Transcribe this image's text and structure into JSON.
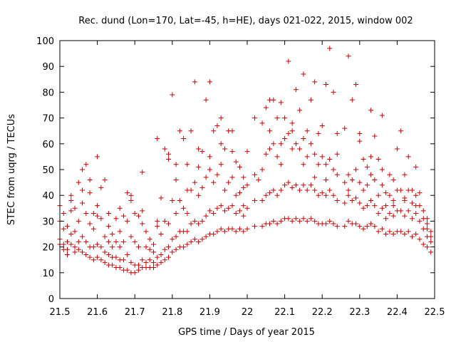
{
  "chart_data": {
    "type": "scatter",
    "title": "Rec. dund (Lon=170, Lat=-45, h=HE), days 021-022, 2015, window 002",
    "xlabel": "GPS time / Days of year 2015",
    "ylabel": "STEC from uqrg / TECUs",
    "xlim": [
      21.5,
      22.5
    ],
    "ylim": [
      0,
      100
    ],
    "xticks": [
      "21.5",
      "21.6",
      "21.7",
      "21.8",
      "21.9",
      "22",
      "22.1",
      "22.2",
      "22.3",
      "22.4",
      "22.5"
    ],
    "yticks": [
      "0",
      "10",
      "20",
      "30",
      "40",
      "50",
      "60",
      "70",
      "80",
      "90",
      "100"
    ],
    "grid": false,
    "marker": "plus",
    "color": "#cc0000",
    "points": [
      [
        21.5,
        36
      ],
      [
        21.51,
        33
      ],
      [
        21.52,
        28
      ],
      [
        21.53,
        40
      ],
      [
        21.54,
        35
      ],
      [
        21.55,
        45
      ],
      [
        21.56,
        50
      ],
      [
        21.57,
        52
      ],
      [
        21.58,
        41
      ],
      [
        21.59,
        33
      ],
      [
        21.6,
        55
      ],
      [
        21.61,
        43
      ],
      [
        21.62,
        46
      ],
      [
        21.63,
        33
      ],
      [
        21.64,
        25
      ],
      [
        21.65,
        31
      ],
      [
        21.66,
        26
      ],
      [
        21.67,
        32
      ],
      [
        21.68,
        41
      ],
      [
        21.69,
        38
      ],
      [
        21.7,
        33
      ],
      [
        21.71,
        32
      ],
      [
        21.72,
        49
      ],
      [
        21.73,
        26
      ],
      [
        21.74,
        23
      ],
      [
        21.75,
        21
      ],
      [
        21.76,
        62
      ],
      [
        21.77,
        39
      ],
      [
        21.78,
        58
      ],
      [
        21.79,
        56
      ],
      [
        21.8,
        79
      ],
      [
        21.81,
        52
      ],
      [
        21.82,
        65
      ],
      [
        21.83,
        62
      ],
      [
        21.84,
        42
      ],
      [
        21.85,
        65
      ],
      [
        21.86,
        84
      ],
      [
        21.87,
        51
      ],
      [
        21.88,
        57
      ],
      [
        21.89,
        77
      ],
      [
        21.9,
        84
      ],
      [
        21.91,
        65
      ],
      [
        21.92,
        67
      ],
      [
        21.93,
        70
      ],
      [
        21.94,
        58
      ],
      [
        21.95,
        65
      ],
      [
        21.96,
        65
      ],
      [
        21.97,
        53
      ],
      [
        21.98,
        51
      ],
      [
        21.99,
        47
      ],
      [
        22.0,
        57
      ],
      [
        22.02,
        70
      ],
      [
        22.04,
        68
      ],
      [
        22.05,
        74
      ],
      [
        22.06,
        77
      ],
      [
        22.07,
        77
      ],
      [
        22.08,
        70
      ],
      [
        22.09,
        76
      ],
      [
        22.1,
        70
      ],
      [
        22.11,
        92
      ],
      [
        22.12,
        65
      ],
      [
        22.13,
        81
      ],
      [
        22.14,
        73
      ],
      [
        22.15,
        87
      ],
      [
        22.16,
        65
      ],
      [
        22.17,
        77
      ],
      [
        22.18,
        84
      ],
      [
        22.19,
        64
      ],
      [
        22.2,
        67
      ],
      [
        22.21,
        83
      ],
      [
        22.22,
        97
      ],
      [
        22.23,
        80
      ],
      [
        22.24,
        64
      ],
      [
        22.26,
        66
      ],
      [
        22.27,
        94
      ],
      [
        22.28,
        77
      ],
      [
        22.29,
        83
      ],
      [
        22.3,
        61
      ],
      [
        22.31,
        54
      ],
      [
        22.32,
        51
      ],
      [
        22.33,
        73
      ],
      [
        22.34,
        63
      ],
      [
        22.35,
        54
      ],
      [
        22.36,
        71
      ],
      [
        22.37,
        41
      ],
      [
        22.38,
        48
      ],
      [
        22.39,
        46
      ],
      [
        22.4,
        58
      ],
      [
        22.41,
        65
      ],
      [
        22.42,
        48
      ],
      [
        22.43,
        55
      ],
      [
        22.44,
        42
      ],
      [
        22.45,
        51
      ],
      [
        22.46,
        41
      ],
      [
        22.47,
        34
      ],
      [
        22.48,
        29
      ],
      [
        22.49,
        26
      ],
      [
        21.5,
        30
      ],
      [
        21.51,
        27
      ],
      [
        21.52,
        22
      ],
      [
        21.53,
        34
      ],
      [
        21.54,
        26
      ],
      [
        21.55,
        30
      ],
      [
        21.56,
        37
      ],
      [
        21.57,
        33
      ],
      [
        21.58,
        29
      ],
      [
        21.59,
        27
      ],
      [
        21.6,
        32
      ],
      [
        21.61,
        31
      ],
      [
        21.62,
        24
      ],
      [
        21.63,
        22
      ],
      [
        21.64,
        20
      ],
      [
        21.65,
        22
      ],
      [
        21.66,
        20
      ],
      [
        21.67,
        22
      ],
      [
        21.68,
        30
      ],
      [
        21.69,
        24
      ],
      [
        21.7,
        22
      ],
      [
        21.71,
        20
      ],
      [
        21.72,
        29
      ],
      [
        21.73,
        20
      ],
      [
        21.74,
        19
      ],
      [
        21.75,
        18
      ],
      [
        21.76,
        28
      ],
      [
        21.77,
        25
      ],
      [
        21.78,
        30
      ],
      [
        21.79,
        29
      ],
      [
        21.8,
        38
      ],
      [
        21.81,
        33
      ],
      [
        21.82,
        38
      ],
      [
        21.83,
        35
      ],
      [
        21.84,
        33
      ],
      [
        21.85,
        42
      ],
      [
        21.86,
        45
      ],
      [
        21.87,
        40
      ],
      [
        21.88,
        43
      ],
      [
        21.89,
        47
      ],
      [
        21.9,
        50
      ],
      [
        21.91,
        45
      ],
      [
        21.92,
        48
      ],
      [
        21.93,
        52
      ],
      [
        21.94,
        42
      ],
      [
        21.95,
        45
      ],
      [
        21.96,
        47
      ],
      [
        21.97,
        40
      ],
      [
        21.98,
        41
      ],
      [
        21.99,
        36
      ],
      [
        22.0,
        44
      ],
      [
        22.02,
        48
      ],
      [
        22.04,
        50
      ],
      [
        22.05,
        56
      ],
      [
        22.06,
        58
      ],
      [
        22.07,
        60
      ],
      [
        22.08,
        55
      ],
      [
        22.09,
        60
      ],
      [
        22.1,
        62
      ],
      [
        22.11,
        64
      ],
      [
        22.12,
        58
      ],
      [
        22.13,
        60
      ],
      [
        22.14,
        58
      ],
      [
        22.15,
        62
      ],
      [
        22.16,
        55
      ],
      [
        22.17,
        60
      ],
      [
        22.18,
        56
      ],
      [
        22.19,
        52
      ],
      [
        22.2,
        55
      ],
      [
        22.21,
        52
      ],
      [
        22.22,
        54
      ],
      [
        22.23,
        50
      ],
      [
        22.24,
        48
      ],
      [
        22.26,
        45
      ],
      [
        22.27,
        48
      ],
      [
        22.28,
        46
      ],
      [
        22.29,
        50
      ],
      [
        22.3,
        45
      ],
      [
        22.31,
        42
      ],
      [
        22.32,
        44
      ],
      [
        22.33,
        48
      ],
      [
        22.34,
        46
      ],
      [
        22.35,
        40
      ],
      [
        22.36,
        44
      ],
      [
        22.37,
        36
      ],
      [
        22.38,
        40
      ],
      [
        22.39,
        38
      ],
      [
        22.4,
        42
      ],
      [
        22.41,
        42
      ],
      [
        22.42,
        39
      ],
      [
        22.43,
        42
      ],
      [
        22.44,
        37
      ],
      [
        22.45,
        40
      ],
      [
        22.46,
        36
      ],
      [
        22.47,
        31
      ],
      [
        22.48,
        27
      ],
      [
        22.49,
        24
      ],
      [
        21.5,
        23
      ],
      [
        21.51,
        21
      ],
      [
        21.52,
        19
      ],
      [
        21.53,
        25
      ],
      [
        21.54,
        20
      ],
      [
        21.55,
        22
      ],
      [
        21.56,
        24
      ],
      [
        21.57,
        22
      ],
      [
        21.58,
        20
      ],
      [
        21.59,
        20
      ],
      [
        21.6,
        21
      ],
      [
        21.61,
        20
      ],
      [
        21.62,
        18
      ],
      [
        21.63,
        17
      ],
      [
        21.64,
        16
      ],
      [
        21.65,
        16
      ],
      [
        21.66,
        15
      ],
      [
        21.67,
        15
      ],
      [
        21.68,
        17
      ],
      [
        21.69,
        14
      ],
      [
        21.7,
        13
      ],
      [
        21.71,
        13
      ],
      [
        21.72,
        15
      ],
      [
        21.73,
        14
      ],
      [
        21.74,
        15
      ],
      [
        21.75,
        14
      ],
      [
        21.76,
        16
      ],
      [
        21.77,
        17
      ],
      [
        21.78,
        19
      ],
      [
        21.79,
        20
      ],
      [
        21.8,
        23
      ],
      [
        21.81,
        24
      ],
      [
        21.82,
        26
      ],
      [
        21.83,
        26
      ],
      [
        21.84,
        26
      ],
      [
        21.85,
        29
      ],
      [
        21.86,
        30
      ],
      [
        21.87,
        29
      ],
      [
        21.88,
        30
      ],
      [
        21.89,
        32
      ],
      [
        21.9,
        34
      ],
      [
        21.91,
        33
      ],
      [
        21.92,
        35
      ],
      [
        21.93,
        36
      ],
      [
        21.94,
        34
      ],
      [
        21.95,
        35
      ],
      [
        21.96,
        36
      ],
      [
        21.97,
        33
      ],
      [
        21.98,
        34
      ],
      [
        21.99,
        32
      ],
      [
        22.0,
        35
      ],
      [
        22.02,
        38
      ],
      [
        22.04,
        38
      ],
      [
        22.05,
        40
      ],
      [
        22.06,
        41
      ],
      [
        22.07,
        42
      ],
      [
        22.08,
        40
      ],
      [
        22.09,
        42
      ],
      [
        22.1,
        44
      ],
      [
        22.11,
        45
      ],
      [
        22.12,
        43
      ],
      [
        22.13,
        44
      ],
      [
        22.14,
        42
      ],
      [
        22.15,
        44
      ],
      [
        22.16,
        42
      ],
      [
        22.17,
        44
      ],
      [
        22.18,
        42
      ],
      [
        22.19,
        40
      ],
      [
        22.2,
        41
      ],
      [
        22.21,
        40
      ],
      [
        22.22,
        42
      ],
      [
        22.23,
        40
      ],
      [
        22.24,
        38
      ],
      [
        22.26,
        37
      ],
      [
        22.27,
        40
      ],
      [
        22.28,
        38
      ],
      [
        22.29,
        39
      ],
      [
        22.3,
        37
      ],
      [
        22.31,
        35
      ],
      [
        22.32,
        36
      ],
      [
        22.33,
        38
      ],
      [
        22.34,
        36
      ],
      [
        22.35,
        33
      ],
      [
        22.36,
        35
      ],
      [
        22.37,
        31
      ],
      [
        22.38,
        33
      ],
      [
        22.39,
        32
      ],
      [
        22.4,
        34
      ],
      [
        22.41,
        34
      ],
      [
        22.42,
        32
      ],
      [
        22.43,
        34
      ],
      [
        22.44,
        31
      ],
      [
        22.45,
        33
      ],
      [
        22.46,
        30
      ],
      [
        22.47,
        27
      ],
      [
        22.48,
        24
      ],
      [
        22.49,
        22
      ],
      [
        21.5,
        21
      ],
      [
        21.51,
        19
      ],
      [
        21.52,
        17
      ],
      [
        21.53,
        21
      ],
      [
        21.54,
        18
      ],
      [
        21.55,
        19
      ],
      [
        21.56,
        18
      ],
      [
        21.57,
        17
      ],
      [
        21.58,
        16
      ],
      [
        21.59,
        15
      ],
      [
        21.6,
        16
      ],
      [
        21.61,
        15
      ],
      [
        21.62,
        14
      ],
      [
        21.63,
        13
      ],
      [
        21.64,
        13
      ],
      [
        21.65,
        12
      ],
      [
        21.66,
        12
      ],
      [
        21.67,
        11
      ],
      [
        21.68,
        11
      ],
      [
        21.69,
        10
      ],
      [
        21.7,
        10
      ],
      [
        21.71,
        11
      ],
      [
        21.72,
        12
      ],
      [
        21.73,
        12
      ],
      [
        21.74,
        12
      ],
      [
        21.75,
        12
      ],
      [
        21.76,
        13
      ],
      [
        21.77,
        14
      ],
      [
        21.78,
        15
      ],
      [
        21.79,
        16
      ],
      [
        21.8,
        18
      ],
      [
        21.81,
        19
      ],
      [
        21.82,
        20
      ],
      [
        21.83,
        20
      ],
      [
        21.84,
        21
      ],
      [
        21.85,
        22
      ],
      [
        21.86,
        23
      ],
      [
        21.87,
        22
      ],
      [
        21.88,
        23
      ],
      [
        21.89,
        24
      ],
      [
        21.9,
        25
      ],
      [
        21.91,
        25
      ],
      [
        21.92,
        26
      ],
      [
        21.93,
        27
      ],
      [
        21.94,
        26
      ],
      [
        21.95,
        27
      ],
      [
        21.96,
        27
      ],
      [
        21.97,
        26
      ],
      [
        21.98,
        27
      ],
      [
        21.99,
        26
      ],
      [
        22.0,
        27
      ],
      [
        22.02,
        28
      ],
      [
        22.04,
        28
      ],
      [
        22.05,
        29
      ],
      [
        22.06,
        29
      ],
      [
        22.07,
        30
      ],
      [
        22.08,
        29
      ],
      [
        22.09,
        30
      ],
      [
        22.1,
        31
      ],
      [
        22.11,
        31
      ],
      [
        22.12,
        30
      ],
      [
        22.13,
        31
      ],
      [
        22.14,
        30
      ],
      [
        22.15,
        31
      ],
      [
        22.16,
        30
      ],
      [
        22.17,
        31
      ],
      [
        22.18,
        30
      ],
      [
        22.19,
        29
      ],
      [
        22.2,
        29
      ],
      [
        22.21,
        29
      ],
      [
        22.22,
        30
      ],
      [
        22.23,
        29
      ],
      [
        22.24,
        28
      ],
      [
        22.26,
        28
      ],
      [
        22.27,
        30
      ],
      [
        22.28,
        29
      ],
      [
        22.29,
        29
      ],
      [
        22.3,
        28
      ],
      [
        22.31,
        27
      ],
      [
        22.32,
        28
      ],
      [
        22.33,
        29
      ],
      [
        22.34,
        28
      ],
      [
        22.35,
        26
      ],
      [
        22.36,
        27
      ],
      [
        22.37,
        25
      ],
      [
        22.38,
        26
      ],
      [
        22.39,
        25
      ],
      [
        22.4,
        26
      ],
      [
        22.41,
        26
      ],
      [
        22.42,
        25
      ],
      [
        22.43,
        26
      ],
      [
        22.44,
        24
      ],
      [
        22.45,
        25
      ],
      [
        22.46,
        23
      ],
      [
        22.47,
        21
      ],
      [
        22.48,
        20
      ],
      [
        22.49,
        18
      ],
      [
        21.53,
        38
      ],
      [
        21.56,
        42
      ],
      [
        21.58,
        46
      ],
      [
        21.6,
        36
      ],
      [
        21.63,
        28
      ],
      [
        21.66,
        35
      ],
      [
        21.69,
        40
      ],
      [
        21.72,
        34
      ],
      [
        21.76,
        30
      ],
      [
        21.79,
        54
      ],
      [
        21.81,
        46
      ],
      [
        21.84,
        52
      ],
      [
        21.87,
        58
      ],
      [
        21.9,
        55
      ],
      [
        21.93,
        60
      ],
      [
        21.96,
        57
      ],
      [
        21.99,
        43
      ],
      [
        22.03,
        46
      ],
      [
        22.06,
        65
      ],
      [
        22.09,
        52
      ],
      [
        22.12,
        68
      ],
      [
        22.15,
        52
      ],
      [
        22.18,
        47
      ],
      [
        22.21,
        46
      ],
      [
        22.24,
        56
      ],
      [
        22.27,
        42
      ],
      [
        22.3,
        64
      ],
      [
        22.33,
        55
      ],
      [
        22.36,
        50
      ],
      [
        22.39,
        36
      ],
      [
        22.42,
        38
      ],
      [
        22.45,
        36
      ],
      [
        22.48,
        31
      ]
    ]
  }
}
